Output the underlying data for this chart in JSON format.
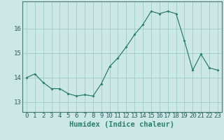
{
  "x": [
    0,
    1,
    2,
    3,
    4,
    5,
    6,
    7,
    8,
    9,
    10,
    11,
    12,
    13,
    14,
    15,
    16,
    17,
    18,
    19,
    20,
    21,
    22,
    23
  ],
  "y": [
    14.0,
    14.15,
    13.8,
    13.55,
    13.55,
    13.35,
    13.25,
    13.3,
    13.25,
    13.75,
    14.45,
    14.8,
    15.25,
    15.75,
    16.15,
    16.7,
    16.6,
    16.7,
    16.6,
    15.5,
    14.3,
    14.95,
    14.4,
    14.3
  ],
  "line_color": "#2d7d6e",
  "marker_color": "#2d7d6e",
  "background_color": "#cce8e4",
  "grid_color": "#a0ccc8",
  "xlabel": "Humidex (Indice chaleur)",
  "yticks": [
    13,
    14,
    15,
    16
  ],
  "ylim": [
    12.6,
    17.1
  ],
  "xlim": [
    -0.5,
    23.5
  ],
  "xtick_labels": [
    "0",
    "1",
    "2",
    "3",
    "4",
    "5",
    "6",
    "7",
    "8",
    "9",
    "10",
    "11",
    "12",
    "13",
    "14",
    "15",
    "16",
    "17",
    "18",
    "19",
    "20",
    "21",
    "22",
    "23"
  ],
  "axis_fontsize": 6.5,
  "label_fontsize": 7.5,
  "spine_color": "#4a7a74",
  "tick_color": "#2d6060"
}
